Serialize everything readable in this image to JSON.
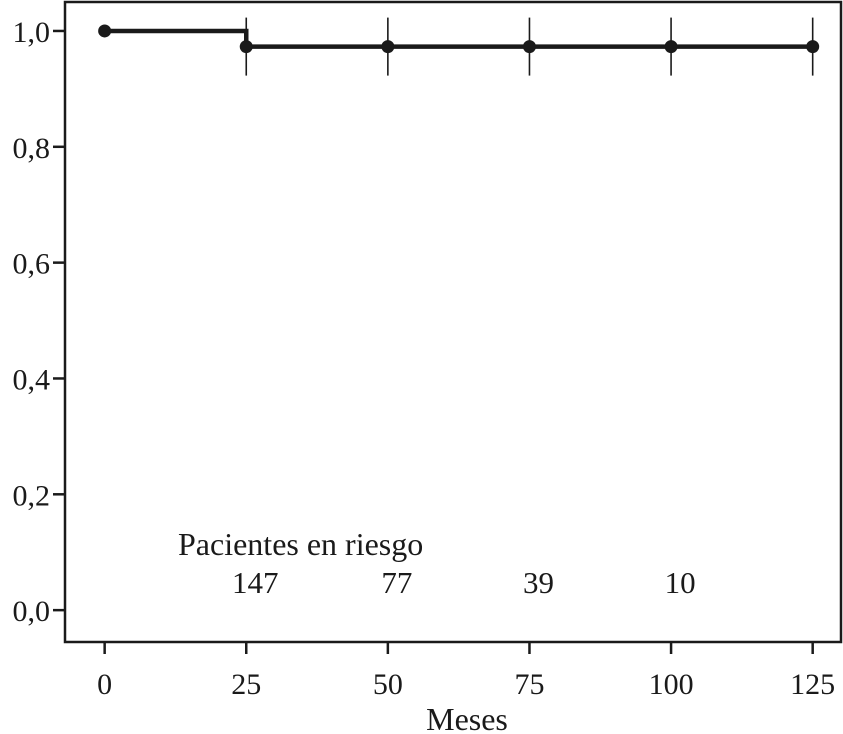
{
  "chart_data": {
    "type": "line",
    "step": true,
    "title": "",
    "xlabel": "Meses",
    "ylabel": "",
    "xlim": [
      -7,
      130
    ],
    "ylim": [
      -0.055,
      1.05
    ],
    "x_ticks": [
      0,
      25,
      50,
      75,
      100,
      125
    ],
    "x_tick_labels": [
      "0",
      "25",
      "50",
      "75",
      "100",
      "125"
    ],
    "y_ticks": [
      0.0,
      0.2,
      0.4,
      0.6,
      0.8,
      1.0
    ],
    "y_tick_labels": [
      "0,0",
      "0,2",
      "0,4",
      "0,6",
      "0,8",
      "1,0"
    ],
    "grid": false,
    "series": [
      {
        "color": "#1a1a1a",
        "steps": [
          {
            "x": 0,
            "y": 1.0
          },
          {
            "x": 25,
            "y": 0.973
          },
          {
            "x": 125,
            "y": 0.973
          }
        ],
        "points": [
          {
            "x": 0,
            "y": 1.0
          },
          {
            "x": 25,
            "y": 0.973
          },
          {
            "x": 50,
            "y": 0.973
          },
          {
            "x": 75,
            "y": 0.973
          },
          {
            "x": 100,
            "y": 0.973
          },
          {
            "x": 125,
            "y": 0.973
          }
        ],
        "censor_marks": [
          25,
          50,
          75,
          100,
          125
        ]
      }
    ],
    "at_risk": {
      "title": "Pacientes en riesgo",
      "entries": [
        {
          "x": 25,
          "label": "147"
        },
        {
          "x": 50,
          "label": "77"
        },
        {
          "x": 75,
          "label": "39"
        },
        {
          "x": 100,
          "label": "10"
        }
      ]
    }
  }
}
